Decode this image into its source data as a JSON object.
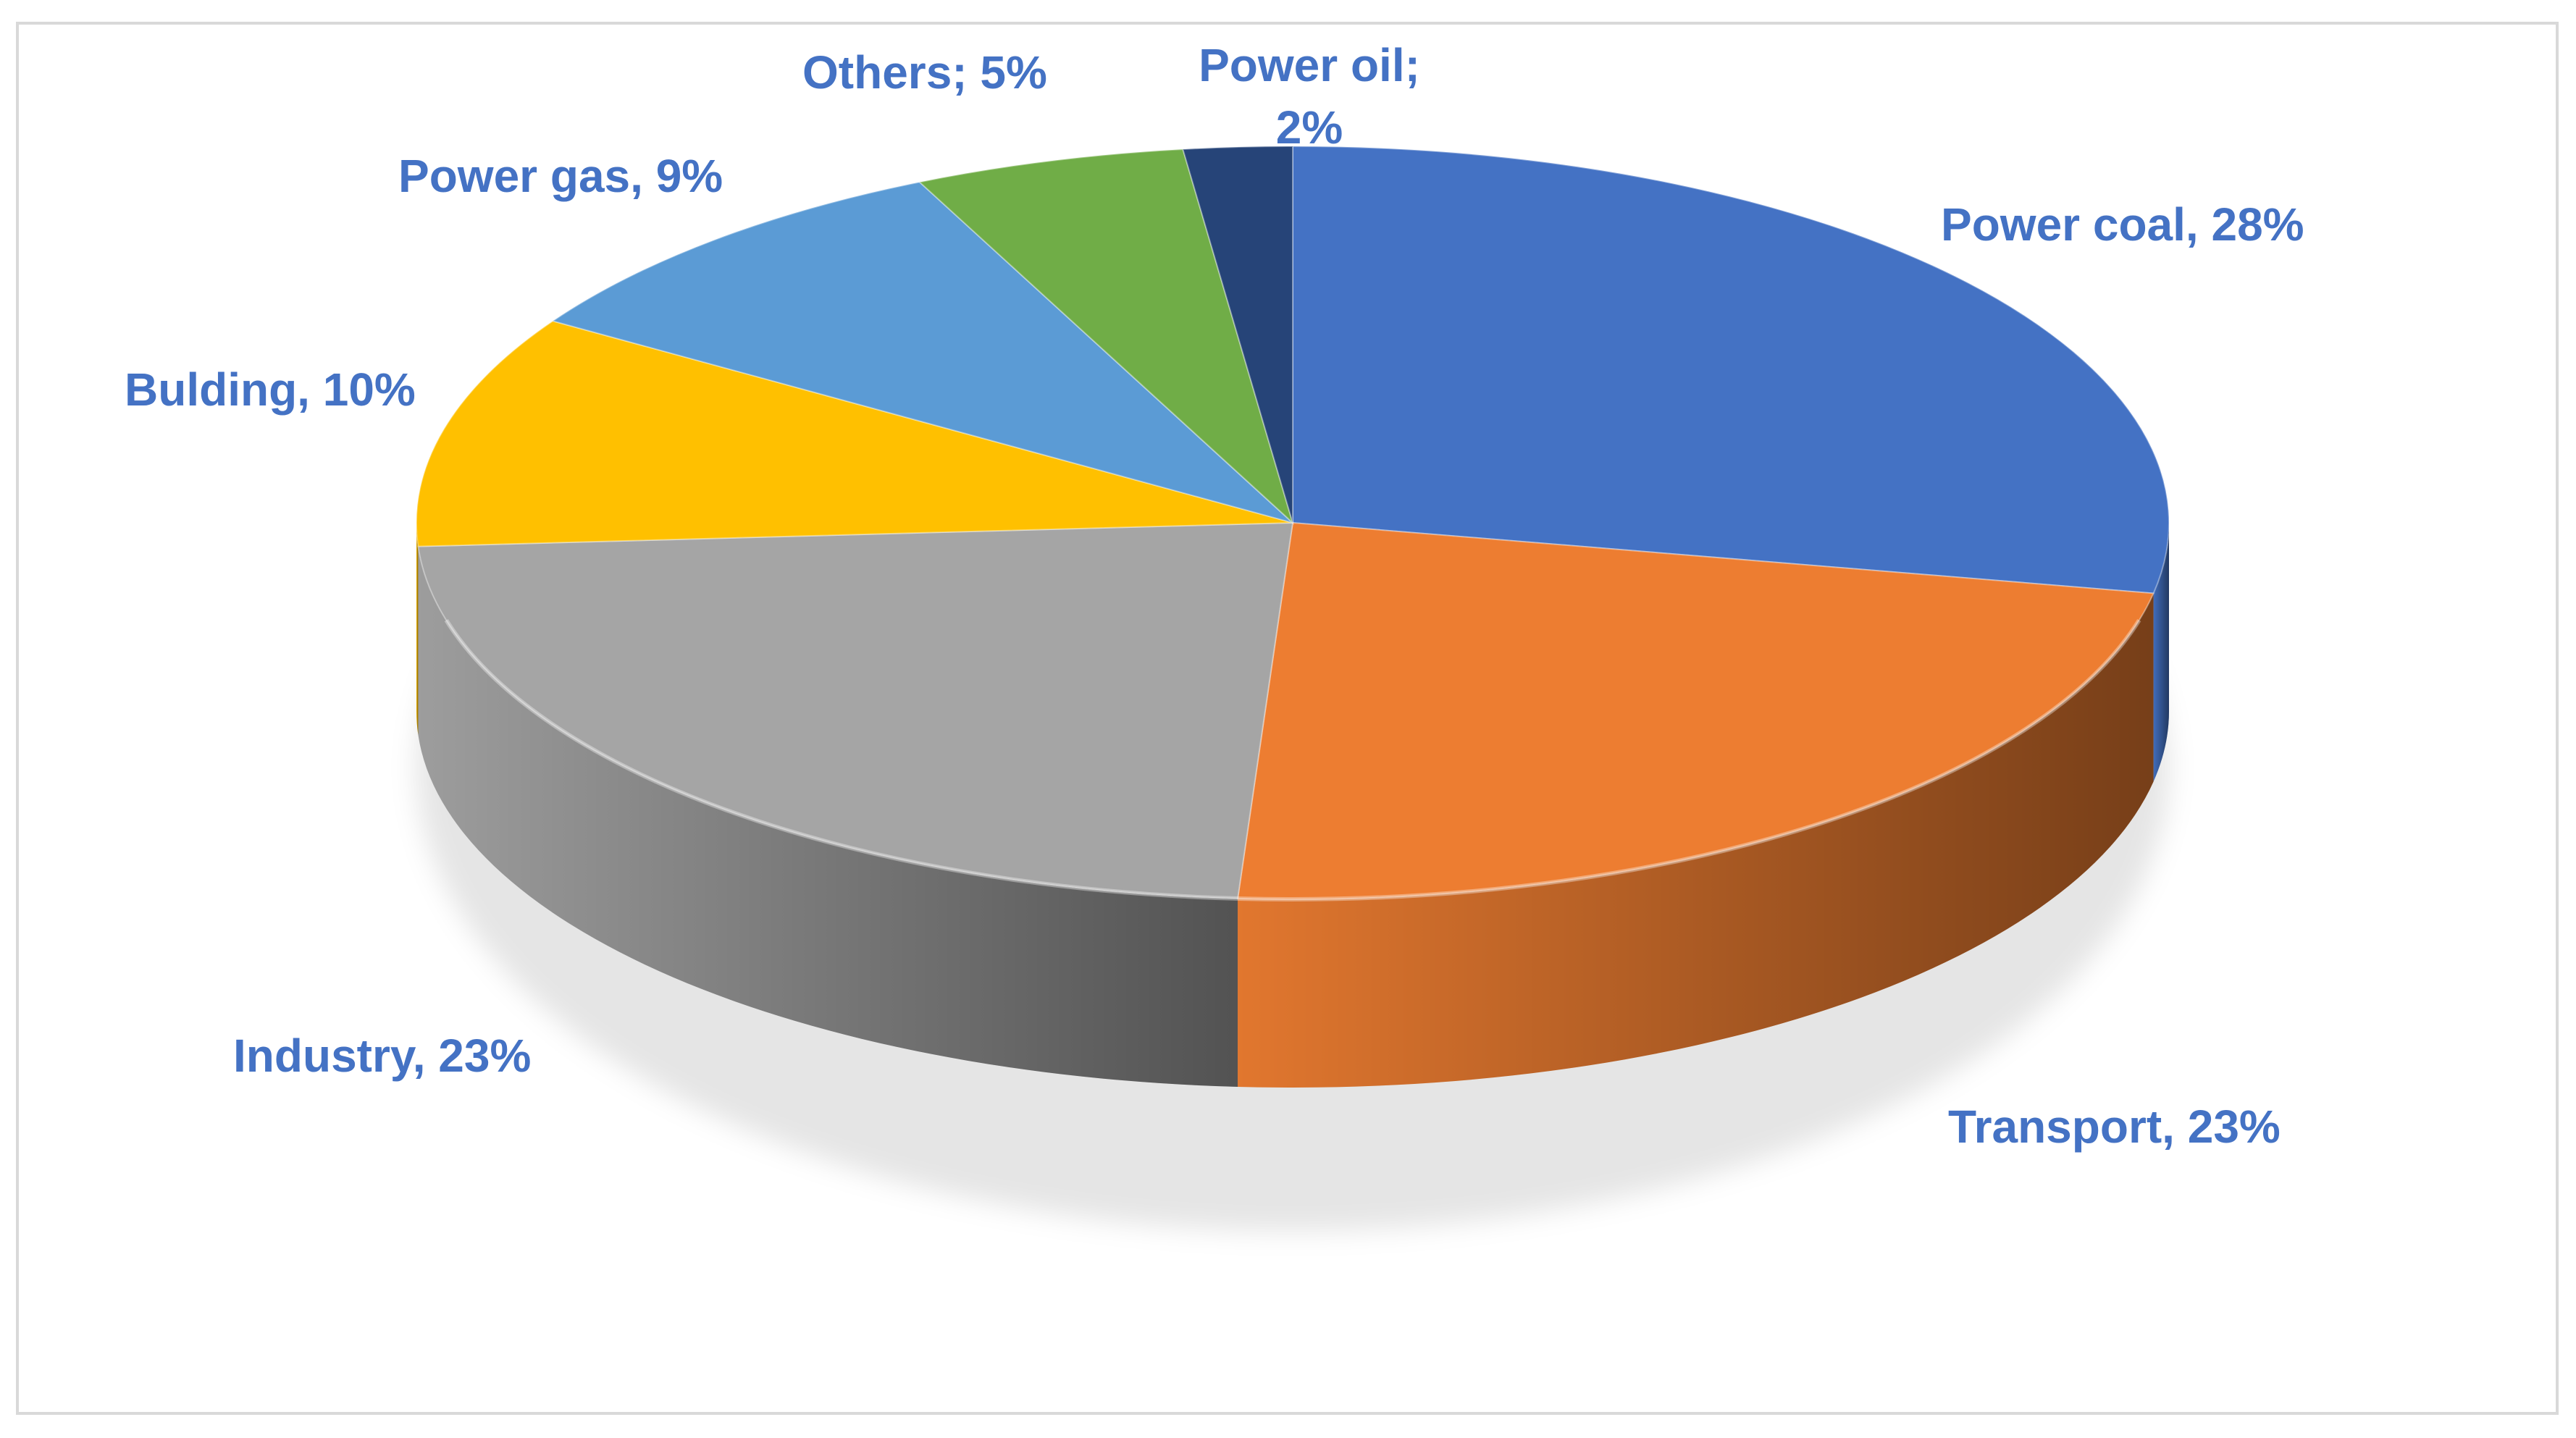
{
  "chart_data": {
    "type": "pie",
    "title": "",
    "slices": [
      {
        "label": "Power coal",
        "value": 28,
        "text": "Power coal, 28%",
        "color": "#4472c4"
      },
      {
        "label": "Transport",
        "value": 23,
        "text": "Transport, 23%",
        "color": "#ed7d31"
      },
      {
        "label": "Industry",
        "value": 23,
        "text": "Industry, 23%",
        "color": "#a5a5a5"
      },
      {
        "label": "Bulding",
        "value": 10,
        "text": "Bulding, 10%",
        "color": "#ffc000"
      },
      {
        "label": "Power gas",
        "value": 9,
        "text": "Power gas, 9%",
        "color": "#5b9bd5"
      },
      {
        "label": "Others",
        "value": 5,
        "text": "Others; 5%",
        "color": "#70ad47"
      },
      {
        "label": "Power oil",
        "value": 2,
        "text_lines": [
          "Power oil;",
          "2%"
        ],
        "color": "#264478"
      }
    ],
    "label_color": "#4472c4",
    "legend": "none",
    "style": "3d-tilted"
  }
}
